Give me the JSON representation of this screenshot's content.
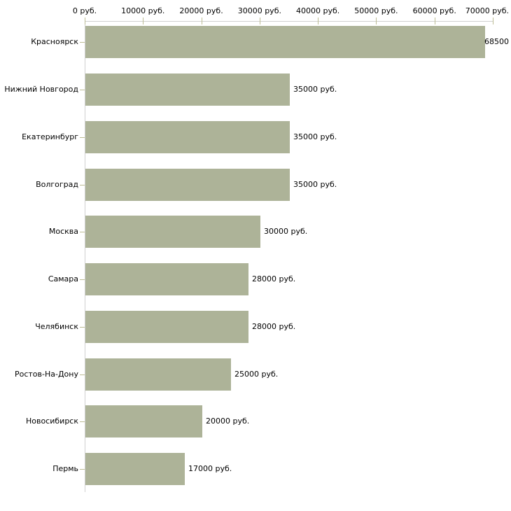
{
  "chart_data": {
    "type": "bar",
    "orientation": "horizontal",
    "title": "",
    "xlabel": "",
    "ylabel": "",
    "xlim": [
      0,
      70000
    ],
    "grid": false,
    "legend": "none",
    "x_tick_values": [
      0,
      10000,
      20000,
      30000,
      40000,
      50000,
      60000,
      70000
    ],
    "x_tick_labels": [
      "0 руб.",
      "10000 руб.",
      "20000 руб.",
      "30000 руб.",
      "40000 руб.",
      "50000 руб.",
      "60000 руб.",
      "70000 руб."
    ],
    "categories": [
      "Красноярск",
      "Нижний Новгород",
      "Екатеринбург",
      "Волгоград",
      "Москва",
      "Самара",
      "Челябинск",
      "Ростов-На-Дону",
      "Новосибирск",
      "Пермь"
    ],
    "values": [
      68500,
      35000,
      35000,
      35000,
      30000,
      28000,
      28000,
      25000,
      20000,
      17000
    ],
    "value_labels": [
      "68500",
      "35000 руб.",
      "35000 руб.",
      "35000 руб.",
      "30000 руб.",
      "28000 руб.",
      "28000 руб.",
      "25000 руб.",
      "20000 руб.",
      "17000 руб."
    ],
    "colors": {
      "bar": "#adb398",
      "axis_line": "#d0d0d0",
      "tick": "#bcbc94",
      "text": "#000000",
      "background": "#ffffff"
    }
  }
}
